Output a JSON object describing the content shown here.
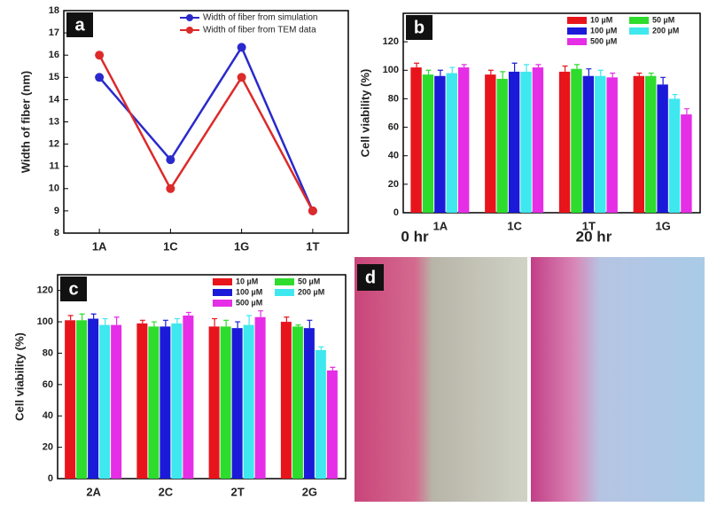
{
  "chart_data": [
    {
      "type": "line",
      "label": "a",
      "ylabel": "Width of fiber (nm)",
      "categories": [
        "1A",
        "1C",
        "1G",
        "1T"
      ],
      "series": [
        {
          "name": "Width of fiber from simulation",
          "color": "#2a2acc",
          "values": [
            15,
            11.3,
            16.35,
            9
          ]
        },
        {
          "name": "Width of fiber from TEM data",
          "color": "#dd2a2a",
          "values": [
            16,
            10,
            15,
            9
          ]
        }
      ],
      "ylim": [
        8,
        18
      ],
      "yticks": [
        8,
        9,
        10,
        11,
        12,
        13,
        14,
        15,
        16,
        17,
        18
      ],
      "legend": "upper right"
    },
    {
      "type": "bar",
      "label": "b",
      "ylabel": "Cell viability (%)",
      "categories": [
        "1A",
        "1C",
        "1T",
        "1G"
      ],
      "series": [
        {
          "name": "10 µM",
          "color": "#e8141c",
          "values": [
            102,
            97,
            99,
            96
          ],
          "errors": [
            3,
            3,
            4,
            2
          ]
        },
        {
          "name": "50 µM",
          "color": "#2ddc2d",
          "values": [
            97,
            94,
            101,
            96
          ],
          "errors": [
            3,
            5,
            3,
            2
          ]
        },
        {
          "name": "100 µM",
          "color": "#1a1ad8",
          "values": [
            96,
            99,
            96,
            90
          ],
          "errors": [
            4,
            6,
            5,
            5
          ]
        },
        {
          "name": "200 µM",
          "color": "#3ee8ee",
          "values": [
            98,
            99,
            96,
            80
          ],
          "errors": [
            4,
            5,
            4,
            3
          ]
        },
        {
          "name": "500 µM",
          "color": "#e52ee5",
          "values": [
            102,
            102,
            95,
            69
          ],
          "errors": [
            2,
            2,
            3,
            4
          ]
        }
      ],
      "ylim": [
        0,
        140
      ],
      "yticks": [
        0,
        20,
        40,
        60,
        80,
        100,
        120
      ],
      "legend": "upper right"
    },
    {
      "type": "bar",
      "label": "c",
      "ylabel": "Cell viability (%)",
      "categories": [
        "2A",
        "2C",
        "2T",
        "2G"
      ],
      "series": [
        {
          "name": "10 µM",
          "color": "#e8141c",
          "values": [
            101,
            99,
            97,
            100
          ],
          "errors": [
            3,
            2,
            5,
            3
          ]
        },
        {
          "name": "50 µM",
          "color": "#2ddc2d",
          "values": [
            101,
            97,
            97,
            97
          ],
          "errors": [
            4,
            3,
            4,
            1
          ]
        },
        {
          "name": "100 µM",
          "color": "#1a1ad8",
          "values": [
            102,
            97,
            96,
            96
          ],
          "errors": [
            3,
            4,
            4,
            5
          ]
        },
        {
          "name": "200 µM",
          "color": "#3ee8ee",
          "values": [
            98,
            99,
            98,
            82
          ],
          "errors": [
            4,
            3,
            6,
            2
          ]
        },
        {
          "name": "500 µM",
          "color": "#e52ee5",
          "values": [
            98,
            104,
            103,
            69
          ],
          "errors": [
            5,
            2,
            4,
            2
          ]
        }
      ],
      "ylim": [
        0,
        130
      ],
      "yticks": [
        0,
        20,
        40,
        60,
        80,
        100,
        120
      ],
      "legend": "upper right"
    }
  ],
  "image_panel": {
    "label": "d",
    "captions": [
      "0 hr",
      "20 hr"
    ]
  }
}
